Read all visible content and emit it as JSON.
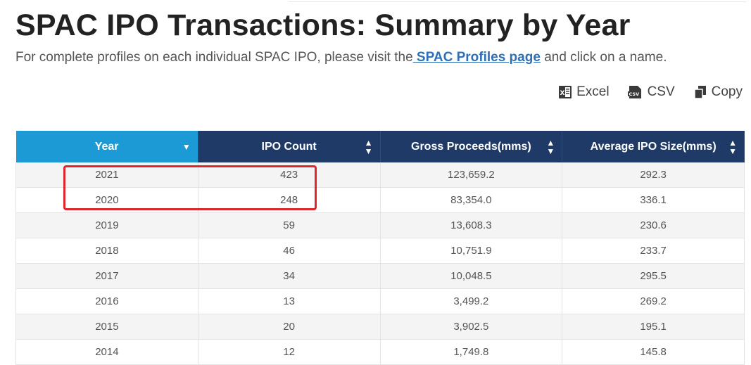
{
  "title": "SPAC IPO Transactions: Summary by Year",
  "subtitle": {
    "before": "For complete profiles on each individual SPAC IPO, please visit the",
    "link": " SPAC Profiles page",
    "after": " and click on a name."
  },
  "export": {
    "excel": "Excel",
    "csv": "CSV",
    "copy": "Copy"
  },
  "table": {
    "columns": [
      "Year",
      "IPO Count",
      "Gross Proceeds(mms)",
      "Average IPO Size(mms)"
    ],
    "rows": [
      [
        "2021",
        "423",
        "123,659.2",
        "292.3"
      ],
      [
        "2020",
        "248",
        "83,354.0",
        "336.1"
      ],
      [
        "2019",
        "59",
        "13,608.3",
        "230.6"
      ],
      [
        "2018",
        "46",
        "10,751.9",
        "233.7"
      ],
      [
        "2017",
        "34",
        "10,048.5",
        "295.5"
      ],
      [
        "2016",
        "13",
        "3,499.2",
        "269.2"
      ],
      [
        "2015",
        "20",
        "3,902.5",
        "195.1"
      ],
      [
        "2014",
        "12",
        "1,749.8",
        "145.8"
      ]
    ]
  },
  "colors": {
    "header_active": "#1c9ad6",
    "header": "#1f3a66",
    "highlight": "#e0262c",
    "link": "#2f6fb6"
  }
}
